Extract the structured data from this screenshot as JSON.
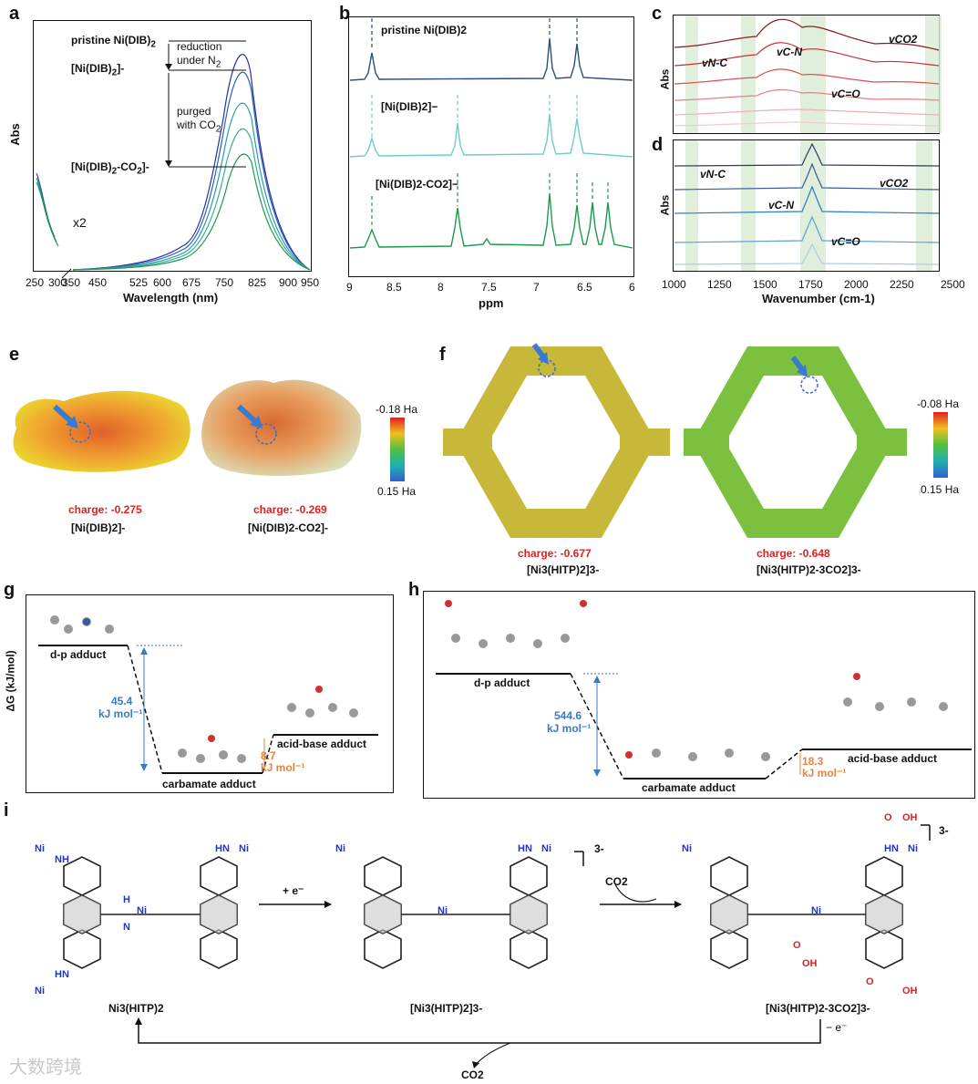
{
  "panels": {
    "a": "a",
    "b": "b",
    "c": "c",
    "d": "d",
    "e": "e",
    "f": "f",
    "g": "g",
    "h": "h",
    "i": "i"
  },
  "panel_a": {
    "ylabel": "Abs",
    "xlabel": "Wavelength (nm)",
    "x_ticks": [
      "250",
      "300",
      "350",
      "450",
      "525",
      "600",
      "675",
      "750",
      "825",
      "900",
      "950"
    ],
    "labels": {
      "pristine": "pristine Ni(DIB)",
      "pristine_sub": "2",
      "reduced": "[Ni(DIB)",
      "reduced_sub": "2",
      "reduced_sup": "]-",
      "co2": "[Ni(DIB)",
      "co2_sub": "2",
      "co2_tail": "-CO",
      "co2_sub2": "2",
      "co2_sup": "]-",
      "reduction": "reduction",
      "under": "under N",
      "under_sub": "2",
      "purged": "purged",
      "with": "with CO",
      "with_sub": "2",
      "x2": "x2"
    }
  },
  "panel_b": {
    "xlabel": "ppm",
    "x_ticks": [
      "9",
      "8.5",
      "8",
      "7.5",
      "7",
      "6.5",
      "6"
    ],
    "traces": [
      "pristine Ni(DIB)2",
      "[Ni(DIB)2]−",
      "[Ni(DIB)2-CO2]−"
    ]
  },
  "panel_c": {
    "ylabel": "Abs",
    "labels": [
      "vN-C",
      "vC-N",
      "vC=O",
      "vCO2"
    ]
  },
  "panel_d": {
    "ylabel": "Abs",
    "xlabel": "Wavenumber (cm-1)",
    "x_ticks": [
      "1000",
      "1250",
      "1500",
      "1750",
      "2000",
      "2250",
      "2500"
    ],
    "labels": [
      "vN-C",
      "vC-N",
      "vC=O",
      "vCO2"
    ]
  },
  "panel_e": {
    "charge1": "charge: -0.275",
    "charge2": "charge: -0.269",
    "name1": "[Ni(DIB)2]-",
    "name2": "[Ni(DIB)2-CO2]-",
    "scale_top": "-0.18 Ha",
    "scale_bottom": "0.15 Ha"
  },
  "panel_f": {
    "charge1": "charge: -0.677",
    "charge2": "charge: -0.648",
    "name1": "[Ni3(HITP)2]3-",
    "name2": "[Ni3(HITP)2-3CO2]3-",
    "scale_top": "-0.08 Ha",
    "scale_bottom": "0.15 Ha"
  },
  "panel_g": {
    "ylabel": "ΔG (kJ/mol)",
    "dp": "d-p adduct",
    "carb": "carbamate adduct",
    "acid": "acid-base adduct",
    "e1": "45.4",
    "e1u": "kJ mol⁻¹",
    "e2": "8.7",
    "e2u": "kJ mol⁻¹"
  },
  "panel_h": {
    "dp": "d-p adduct",
    "carb": "carbamate adduct",
    "acid": "acid-base adduct",
    "e1": "544.6",
    "e1u": "kJ mol⁻¹",
    "e2": "18.3",
    "e2u": "kJ mol⁻¹"
  },
  "panel_i": {
    "s1": "Ni3(HITP)2",
    "s2": "[Ni3(HITP)2]3-",
    "s3": "[Ni3(HITP)2-3CO2]3-",
    "arrow1": "+ e⁻",
    "arrow2": "CO2",
    "back": "− e⁻",
    "release": "CO2",
    "charge": "3-"
  },
  "watermark": "大数跨境",
  "colors": {
    "red": "#e02020",
    "blue": "#3a7bbf",
    "orange": "#e8823a",
    "green": "#1a9a4a",
    "teal": "#5cc4c0",
    "navy": "#2a3a6a"
  }
}
